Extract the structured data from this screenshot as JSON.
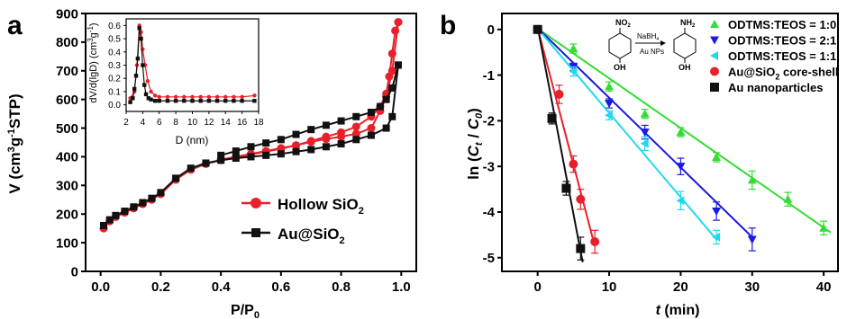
{
  "panels": {
    "a": {
      "letter": "a"
    },
    "b": {
      "letter": "b"
    }
  },
  "colors": {
    "hollow": "#e8202a",
    "au_sio2": "#111111",
    "green": "#33dd33",
    "blue": "#1a1ae0",
    "cyan": "#22d8f0",
    "red": "#e8202a",
    "black": "#111111"
  },
  "chart_data": [
    {
      "id": "a-main",
      "type": "line",
      "ylabel": "V (cm³g⁻¹STP)",
      "xlabel": "P/P₀",
      "xlim": [
        -0.05,
        1.05
      ],
      "ylim": [
        0,
        900
      ],
      "x_ticks": [
        "0.0",
        "0.2",
        "0.4",
        "0.6",
        "0.8",
        "1.0"
      ],
      "y_ticks": [
        "0",
        "100",
        "200",
        "300",
        "400",
        "500",
        "600",
        "700",
        "800",
        "900"
      ],
      "legend_position": "bottom-right",
      "series": [
        {
          "name": "Hollow SiO₂",
          "marker": "circle",
          "branches": [
            {
              "x": [
                0.01,
                0.03,
                0.05,
                0.08,
                0.11,
                0.14,
                0.17,
                0.2,
                0.25,
                0.3,
                0.35,
                0.4,
                0.45,
                0.5,
                0.55,
                0.6,
                0.65,
                0.7,
                0.75,
                0.8,
                0.85,
                0.9,
                0.93,
                0.95,
                0.96,
                0.97,
                0.98,
                0.99
              ],
              "y": [
                150,
                175,
                190,
                205,
                220,
                235,
                250,
                270,
                320,
                355,
                375,
                388,
                398,
                408,
                418,
                428,
                440,
                455,
                470,
                485,
                505,
                540,
                575,
                620,
                680,
                760,
                840,
                870
              ]
            },
            {
              "x": [
                0.99,
                0.97,
                0.95,
                0.93,
                0.9,
                0.85,
                0.8,
                0.75,
                0.7,
                0.65,
                0.6,
                0.55,
                0.5,
                0.45,
                0.4
              ],
              "y": [
                870,
                700,
                610,
                560,
                500,
                480,
                470,
                462,
                452,
                440,
                430,
                420,
                410,
                400,
                390
              ]
            }
          ]
        },
        {
          "name": "Au@SiO₂",
          "marker": "square",
          "branches": [
            {
              "x": [
                0.01,
                0.03,
                0.05,
                0.08,
                0.11,
                0.14,
                0.17,
                0.2,
                0.25,
                0.3,
                0.35,
                0.4,
                0.45,
                0.5,
                0.55,
                0.6,
                0.65,
                0.7,
                0.75,
                0.8,
                0.85,
                0.9,
                0.95,
                0.97,
                0.99
              ],
              "y": [
                160,
                180,
                195,
                210,
                225,
                240,
                255,
                275,
                325,
                360,
                378,
                388,
                395,
                400,
                405,
                410,
                418,
                425,
                435,
                445,
                460,
                475,
                500,
                540,
                720
              ]
            },
            {
              "x": [
                0.99,
                0.97,
                0.95,
                0.93,
                0.9,
                0.85,
                0.8,
                0.75,
                0.7,
                0.65,
                0.6,
                0.55,
                0.5,
                0.45,
                0.4
              ],
              "y": [
                720,
                640,
                600,
                575,
                555,
                540,
                525,
                510,
                495,
                478,
                460,
                448,
                435,
                420,
                405
              ]
            }
          ]
        }
      ],
      "inset": {
        "ylabel": "dV/d(lgD) (cm³g⁻¹)",
        "xlabel": "D (nm)",
        "xlim": [
          2,
          18
        ],
        "ylim": [
          -0.05,
          0.65
        ],
        "x_ticks": [
          "2",
          "4",
          "6",
          "8",
          "10",
          "12",
          "14",
          "16",
          "18"
        ],
        "y_ticks": [
          "0.0",
          "0.1",
          "0.2",
          "0.3",
          "0.4",
          "0.5",
          "0.6"
        ],
        "series": [
          {
            "name": "Hollow SiO₂",
            "marker": "circle",
            "x": [
              2.5,
              3.0,
              3.3,
              3.6,
              3.8,
              4.0,
              4.3,
              4.6,
              5.0,
              5.5,
              6.0,
              7.0,
              8.0,
              9.0,
              10.0,
              11.0,
              12.0,
              13.0,
              14.0,
              15.0,
              16.0,
              17.5
            ],
            "y": [
              0.05,
              0.1,
              0.3,
              0.6,
              0.55,
              0.42,
              0.3,
              0.18,
              0.1,
              0.07,
              0.06,
              0.06,
              0.06,
              0.06,
              0.06,
              0.06,
              0.06,
              0.06,
              0.06,
              0.06,
              0.06,
              0.07
            ]
          },
          {
            "name": "Au@SiO₂",
            "marker": "square",
            "x": [
              2.5,
              2.8,
              3.0,
              3.2,
              3.4,
              3.6,
              3.8,
              4.0,
              4.2,
              4.4,
              4.7,
              5.0,
              5.5,
              6.0,
              7.0,
              8.0,
              9.0,
              10.0,
              11.0,
              12.0,
              13.0,
              14.0,
              15.0,
              16.0,
              17.5
            ],
            "y": [
              0.02,
              0.05,
              0.12,
              0.22,
              0.35,
              0.58,
              0.5,
              0.3,
              0.15,
              0.08,
              0.05,
              0.04,
              0.03,
              0.03,
              0.03,
              0.03,
              0.03,
              0.03,
              0.03,
              0.03,
              0.03,
              0.03,
              0.03,
              0.03,
              0.03
            ]
          }
        ]
      }
    },
    {
      "id": "b-main",
      "type": "scatter",
      "ylabel": "ln (Ct / C0)",
      "xlabel": "t (min)",
      "xlim": [
        -5,
        42
      ],
      "ylim": [
        -5.3,
        0.35
      ],
      "x_ticks": [
        "0",
        "10",
        "20",
        "30",
        "40"
      ],
      "y_ticks": [
        "0",
        "-1",
        "-2",
        "-3",
        "-4",
        "-5"
      ],
      "legend_position": "top-right",
      "scheme": {
        "top_group": "NO₂",
        "bottom_group": "OH",
        "product_group": "NH₂",
        "arrow_top": "NaBH₄",
        "arrow_bottom": "Au NPs"
      },
      "series": [
        {
          "name": "ODTMS:TEOS = 1:0",
          "marker": "triangle-up",
          "x": [
            0,
            5,
            10,
            15,
            20,
            25,
            30,
            35,
            40
          ],
          "y": [
            0,
            -0.42,
            -1.25,
            -1.85,
            -2.25,
            -2.8,
            -3.3,
            -3.72,
            -4.35
          ],
          "err": [
            0.05,
            0.1,
            0.1,
            0.1,
            0.1,
            0.1,
            0.2,
            0.15,
            0.15
          ],
          "fit": [
            [
              0,
              0.02
            ],
            [
              41,
              -4.45
            ]
          ]
        },
        {
          "name": "ODTMS:TEOS = 2:1",
          "marker": "triangle-down",
          "x": [
            0,
            5,
            10,
            15,
            20,
            25,
            30
          ],
          "y": [
            0,
            -0.82,
            -1.62,
            -2.25,
            -3.0,
            -3.98,
            -4.6
          ],
          "err": [
            0.05,
            0.08,
            0.1,
            0.15,
            0.18,
            0.2,
            0.25
          ],
          "fit": [
            [
              0,
              0.03
            ],
            [
              30,
              -4.55
            ]
          ]
        },
        {
          "name": "ODTMS:TEOS = 1:1",
          "marker": "triangle-left",
          "x": [
            0,
            5,
            10,
            15,
            20,
            25
          ],
          "y": [
            0,
            -0.92,
            -1.88,
            -2.5,
            -3.75,
            -4.55
          ],
          "err": [
            0.05,
            0.1,
            0.1,
            0.15,
            0.2,
            0.15
          ],
          "fit": [
            [
              0,
              0.02
            ],
            [
              25,
              -4.6
            ]
          ]
        },
        {
          "name": "Au@SiO₂ core-shell",
          "marker": "circle",
          "x": [
            0,
            3,
            5,
            6,
            8
          ],
          "y": [
            0,
            -1.42,
            -2.95,
            -3.72,
            -4.65
          ],
          "err": [
            0.05,
            0.2,
            0.18,
            0.22,
            0.25
          ],
          "fit": [
            [
              0,
              0.03
            ],
            [
              8,
              -4.75
            ]
          ]
        },
        {
          "name": "Au nanoparticles",
          "marker": "square",
          "x": [
            0,
            2,
            4,
            6
          ],
          "y": [
            0,
            -1.95,
            -3.48,
            -4.8
          ],
          "err": [
            0.05,
            0.12,
            0.15,
            0.25
          ],
          "fit": [
            [
              0,
              0.05
            ],
            [
              6.3,
              -5.1
            ]
          ]
        }
      ]
    }
  ]
}
